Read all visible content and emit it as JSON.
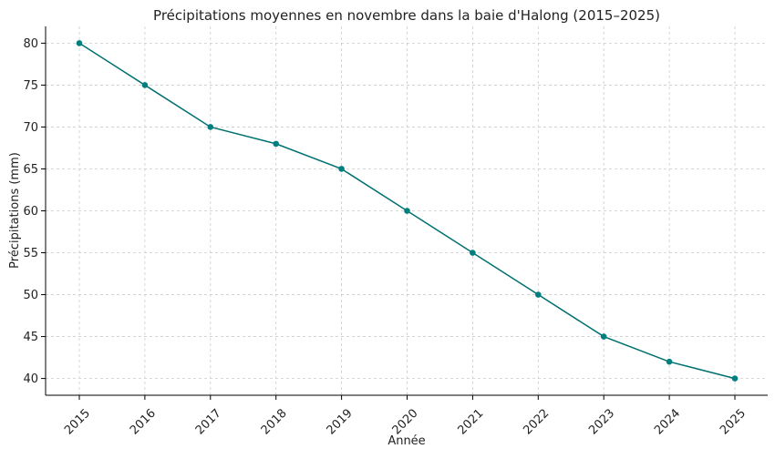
{
  "chart_data": {
    "type": "line",
    "title": "Précipitations moyennes en novembre dans la baie d'Halong (2015–2025)",
    "xlabel": "Année",
    "ylabel": "Précipitations (mm)",
    "x": [
      "2015",
      "2016",
      "2017",
      "2018",
      "2019",
      "2020",
      "2021",
      "2022",
      "2023",
      "2024",
      "2025"
    ],
    "series": [
      {
        "values": [
          80,
          75,
          70,
          68,
          65,
          60,
          55,
          50,
          45,
          42,
          40
        ]
      }
    ],
    "ylim": [
      38,
      82
    ],
    "yticks": [
      40,
      45,
      50,
      55,
      60,
      65,
      70,
      75,
      80
    ],
    "grid": true,
    "line_color": "#007070",
    "marker_color": "#007f7f"
  }
}
